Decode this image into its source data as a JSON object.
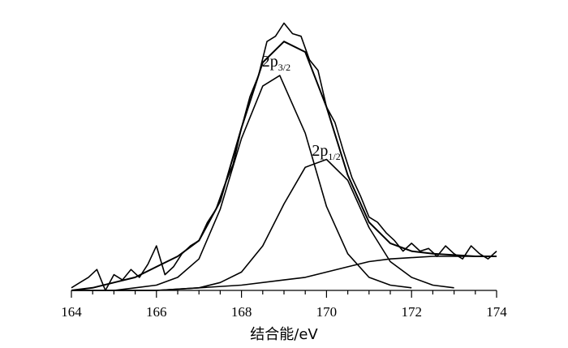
{
  "chart_data": {
    "type": "line",
    "xlabel": "结合能/eV",
    "ylabel": "",
    "xlim": [
      164,
      174
    ],
    "x_ticks": [
      "164",
      "166",
      "168",
      "170",
      "172",
      "174"
    ],
    "grid": false,
    "legend": "none",
    "annotations": [
      {
        "base": "2p",
        "sub": "3/2",
        "x": 168.9
      },
      {
        "base": "2p",
        "sub": "1/2",
        "x": 170.0
      }
    ],
    "series": [
      {
        "role": "measured",
        "x": [
          164.0,
          164.2,
          164.4,
          164.6,
          164.8,
          165.0,
          165.2,
          165.4,
          165.6,
          165.8,
          166.0,
          166.2,
          166.4,
          166.6,
          166.8,
          167.0,
          167.2,
          167.4,
          167.6,
          167.8,
          168.0,
          168.2,
          168.4,
          168.6,
          168.8,
          169.0,
          169.2,
          169.4,
          169.6,
          169.8,
          170.0,
          170.2,
          170.4,
          170.6,
          170.8,
          171.0,
          171.2,
          171.4,
          171.6,
          171.8,
          172.0,
          172.2,
          172.4,
          172.6,
          172.8,
          173.0,
          173.2,
          173.4,
          173.6,
          173.8,
          174.0
        ],
        "values": [
          0.01,
          0.03,
          0.05,
          0.08,
          0.0,
          0.06,
          0.04,
          0.08,
          0.05,
          0.1,
          0.17,
          0.06,
          0.09,
          0.14,
          0.17,
          0.19,
          0.26,
          0.31,
          0.4,
          0.48,
          0.62,
          0.74,
          0.82,
          0.95,
          0.97,
          1.02,
          0.98,
          0.97,
          0.88,
          0.84,
          0.7,
          0.64,
          0.53,
          0.43,
          0.36,
          0.28,
          0.26,
          0.22,
          0.19,
          0.15,
          0.18,
          0.15,
          0.16,
          0.13,
          0.17,
          0.14,
          0.12,
          0.17,
          0.14,
          0.12,
          0.15
        ]
      },
      {
        "role": "envelope",
        "x": [
          164.0,
          164.5,
          165.0,
          165.5,
          166.0,
          166.5,
          167.0,
          167.5,
          168.0,
          168.5,
          169.0,
          169.5,
          170.0,
          170.5,
          171.0,
          171.5,
          172.0,
          172.5,
          173.0,
          173.5,
          174.0
        ],
        "values": [
          0.0,
          0.01,
          0.03,
          0.05,
          0.09,
          0.13,
          0.19,
          0.34,
          0.62,
          0.87,
          0.95,
          0.91,
          0.7,
          0.44,
          0.26,
          0.18,
          0.15,
          0.14,
          0.135,
          0.13,
          0.13
        ]
      },
      {
        "role": "component 2p3/2",
        "x": [
          164.0,
          164.5,
          165.0,
          165.5,
          166.0,
          166.5,
          167.0,
          167.5,
          168.0,
          168.5,
          168.9,
          169.5,
          170.0,
          170.5,
          171.0,
          171.5,
          172.0
        ],
        "values": [
          0.0,
          0.0,
          0.0,
          0.01,
          0.02,
          0.05,
          0.12,
          0.31,
          0.58,
          0.78,
          0.82,
          0.6,
          0.32,
          0.14,
          0.05,
          0.02,
          0.01
        ]
      },
      {
        "role": "component 2p1/2",
        "x": [
          165.0,
          166.0,
          167.0,
          167.5,
          168.0,
          168.5,
          169.0,
          169.5,
          170.0,
          170.5,
          171.0,
          171.5,
          172.0,
          172.5,
          173.0
        ],
        "values": [
          0.0,
          0.0,
          0.01,
          0.03,
          0.07,
          0.17,
          0.33,
          0.47,
          0.5,
          0.42,
          0.24,
          0.11,
          0.05,
          0.02,
          0.01
        ]
      },
      {
        "role": "background",
        "x": [
          164.0,
          165.0,
          166.0,
          167.0,
          168.0,
          169.0,
          169.5,
          170.0,
          170.5,
          171.0,
          171.5,
          172.0,
          172.5,
          173.0,
          173.5,
          174.0
        ],
        "values": [
          0.0,
          0.0,
          0.0,
          0.01,
          0.02,
          0.04,
          0.05,
          0.07,
          0.09,
          0.11,
          0.12,
          0.125,
          0.13,
          0.13,
          0.13,
          0.13
        ]
      }
    ]
  }
}
